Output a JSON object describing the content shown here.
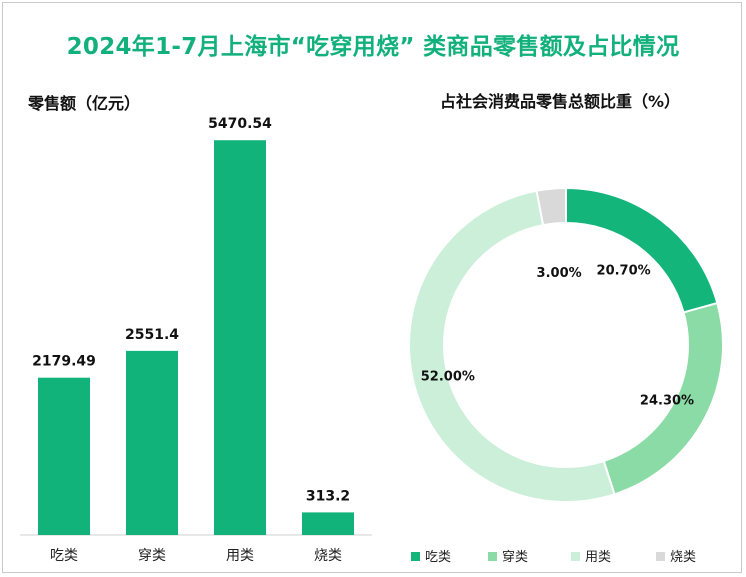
{
  "title": "2024年1-7月上海市“吃穿用烧” 类商品零售额及占比情况",
  "colors": {
    "title": "#12b07a",
    "bar": "#12b37b",
    "pie": [
      "#13b57b",
      "#8adba6",
      "#ccefd9",
      "#d9d9d9"
    ]
  },
  "chart_data": [
    {
      "type": "bar",
      "subtitle": "零售额（亿元）",
      "categories": [
        "吃类",
        "穿类",
        "用类",
        "烧类"
      ],
      "values": [
        2179.49,
        2551.4,
        5470.54,
        313.2
      ],
      "value_labels": [
        "2179.49",
        "2551.4",
        "5470.54",
        "313.2"
      ],
      "ylim": [
        0,
        6000
      ],
      "grid": false
    },
    {
      "type": "pie",
      "subtitle": "占社会消费品零售总额比重（%）",
      "categories": [
        "吃类",
        "穿类",
        "用类",
        "烧类"
      ],
      "values": [
        20.7,
        24.3,
        52.0,
        3.0
      ],
      "value_labels": [
        "20.70%",
        "24.30%",
        "52.00%",
        "3.00%"
      ],
      "donut": true,
      "legend_position": "bottom"
    }
  ]
}
